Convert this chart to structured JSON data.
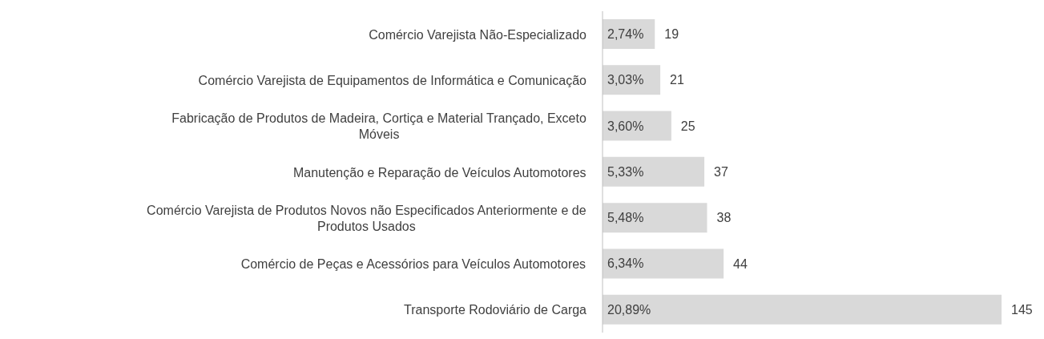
{
  "chart_data": {
    "type": "bar",
    "orientation": "horizontal",
    "categories": [
      "Comércio Varejista Não-Especializado",
      "Comércio Varejista de Equipamentos de Informática e Comunicação",
      "Fabricação de Produtos de Madeira, Cortiça e Material Trançado, Exceto Móveis",
      "Manutenção e Reparação de Veículos Automotores",
      "Comércio Varejista de Produtos Novos não Especificados Anteriormente e de Produtos Usados",
      "Comércio de Peças e Acessórios para Veículos Automotores",
      "Transporte Rodoviário de Carga"
    ],
    "values": [
      19,
      21,
      25,
      37,
      38,
      44,
      145
    ],
    "data_labels": true,
    "annotations": [
      "2,74%",
      "3,03%",
      "3,60%",
      "5,33%",
      "5,48%",
      "6,34%",
      "20,89%"
    ],
    "color": "#d9d9d9",
    "grid": false,
    "legend": false
  }
}
